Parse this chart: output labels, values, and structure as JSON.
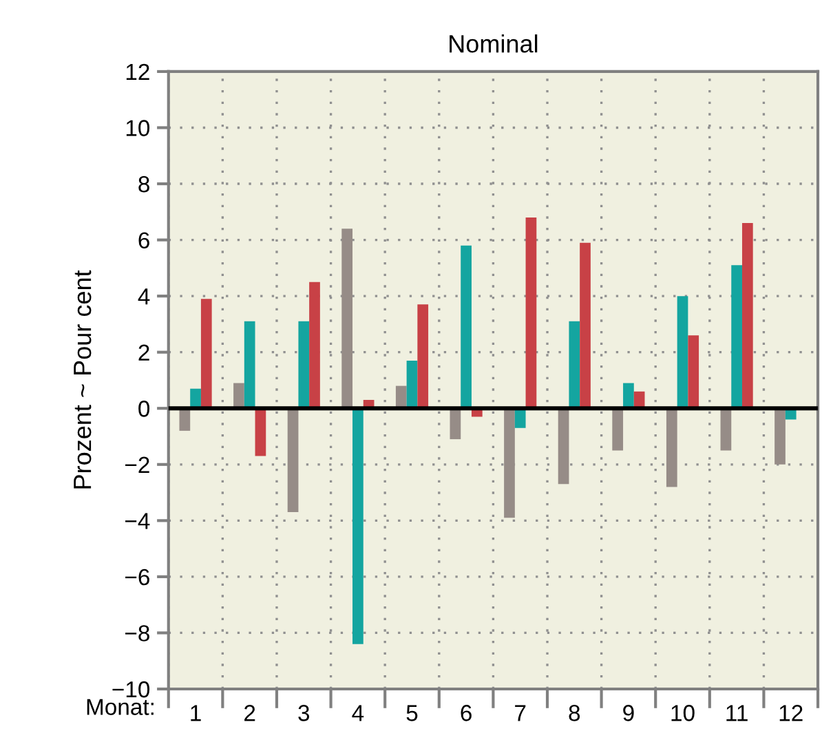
{
  "chart_data": {
    "type": "bar",
    "title": "Nominal",
    "ylabel": "Prozent ~ Pour cent",
    "xlabel": "Monat:",
    "categories": [
      "1",
      "2",
      "3",
      "4",
      "5",
      "6",
      "7",
      "8",
      "9",
      "10",
      "11",
      "12"
    ],
    "series": [
      {
        "color": "#968c87",
        "values": [
          -0.8,
          0.9,
          -3.7,
          6.4,
          0.8,
          -1.1,
          -3.9,
          -2.7,
          -1.5,
          -2.8,
          -1.5,
          -2.0
        ]
      },
      {
        "color": "#14a5a0",
        "values": [
          0.7,
          3.1,
          3.1,
          -8.4,
          1.7,
          5.8,
          -0.7,
          3.1,
          0.9,
          4.0,
          5.1,
          -0.4
        ]
      },
      {
        "color": "#c84146",
        "values": [
          3.9,
          -1.7,
          4.5,
          0.3,
          3.7,
          -0.3,
          6.8,
          5.9,
          0.6,
          2.6,
          6.6,
          null
        ]
      }
    ],
    "ylim": [
      -10,
      12
    ],
    "yticks": [
      {
        "value": -10,
        "label": "−10"
      },
      {
        "value": -8,
        "label": "−8"
      },
      {
        "value": -6,
        "label": "−6"
      },
      {
        "value": -4,
        "label": "−4"
      },
      {
        "value": -2,
        "label": "−2"
      },
      0,
      2,
      4,
      6,
      8,
      10,
      12
    ],
    "grid": true,
    "legend": false,
    "ref_lines": [
      {
        "axis": "y",
        "value": 0,
        "color": "#000000"
      }
    ]
  }
}
